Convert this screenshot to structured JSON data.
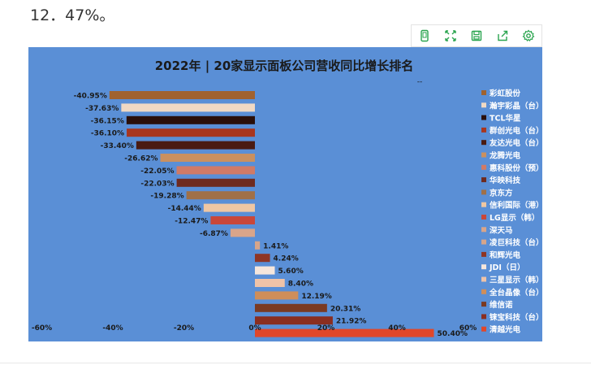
{
  "header_text": "12．47%。",
  "toolbar": {
    "icons": [
      "mobile-icon",
      "fullscreen-icon",
      "save-icon",
      "share-icon",
      "settings-icon"
    ],
    "color": "#2aa44f"
  },
  "chart_data": {
    "type": "bar",
    "orientation": "horizontal",
    "title": "2022年 | 20家显示面板公司营收同比增长排名",
    "subtitle": "--",
    "xlabel": "",
    "ylabel": "",
    "xlim": [
      -60,
      60
    ],
    "xticks": [
      -60,
      -40,
      -20,
      0,
      20,
      40,
      60
    ],
    "xtick_labels": [
      "-60%",
      "-40%",
      "-20%",
      "0%",
      "20%",
      "40%",
      "60%"
    ],
    "grid": false,
    "legend_position": "right",
    "background": "#5a8fd6",
    "bars": [
      {
        "name": "彩虹股份",
        "value": -40.95,
        "label": "-40.95%",
        "color": "#a0622f"
      },
      {
        "name": "瀚宇彩晶（台）",
        "value": -37.63,
        "label": "-37.63%",
        "color": "#f0d9c4"
      },
      {
        "name": "TCL华星",
        "value": -36.15,
        "label": "-36.15%",
        "color": "#2a0f0a"
      },
      {
        "name": "群创光电（台）",
        "value": -36.1,
        "label": "-36.10%",
        "color": "#a8361f"
      },
      {
        "name": "友达光电（台）",
        "value": -33.4,
        "label": "-33.40%",
        "color": "#4a1b12"
      },
      {
        "name": "龙腾光电",
        "value": -26.62,
        "label": "-26.62%",
        "color": "#c99060"
      },
      {
        "name": "惠科股份（预）",
        "value": -22.05,
        "label": "-22.05%",
        "color": "#d07a66"
      },
      {
        "name": "华映科技",
        "value": -22.03,
        "label": "-22.03%",
        "color": "#6e2a1f"
      },
      {
        "name": "京东方",
        "value": -19.28,
        "label": "-19.28%",
        "color": "#a07048"
      },
      {
        "name": "信利国际（港）",
        "value": -14.44,
        "label": "-14.44%",
        "color": "#efc7a3"
      },
      {
        "name": "LG显示（韩）",
        "value": -12.47,
        "label": "-12.47%",
        "color": "#c9473a"
      },
      {
        "name": "深天马",
        "value": -6.87,
        "label": "-6.87%",
        "color": "#d9a58a"
      },
      {
        "name": "凌巨科技（台）",
        "value": 1.41,
        "label": "1.41%",
        "color": "#d6a58a"
      },
      {
        "name": "和辉光电",
        "value": 4.24,
        "label": "4.24%",
        "color": "#8e3525"
      },
      {
        "name": "JDI（日）",
        "value": 5.6,
        "label": "5.60%",
        "color": "#f5e6dc"
      },
      {
        "name": "三星显示（韩）",
        "value": 8.4,
        "label": "8.40%",
        "color": "#efc3a8"
      },
      {
        "name": "全台晶像（台）",
        "value": 12.19,
        "label": "12.19%",
        "color": "#cf8e5a"
      },
      {
        "name": "维信诺",
        "value": 20.31,
        "label": "20.31%",
        "color": "#7a3a22"
      },
      {
        "name": "铼宝科技（台）",
        "value": 21.92,
        "label": "21.92%",
        "color": "#8a2e20"
      },
      {
        "name": "清越光电",
        "value": 50.4,
        "label": "50.40%",
        "color": "#e0472a"
      }
    ]
  }
}
